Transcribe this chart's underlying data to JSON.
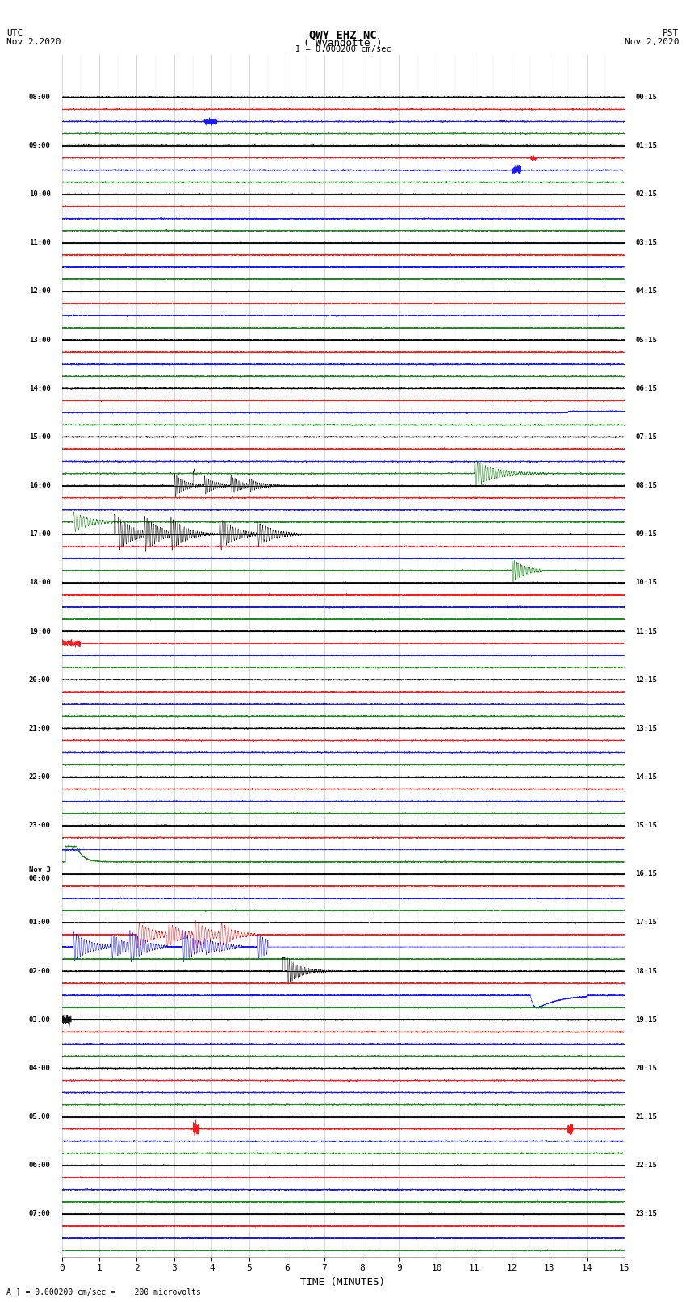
{
  "title_line1": "QWY EHZ NC",
  "title_line2": "( Wyandotte )",
  "title_line3": "I = 0.000200 cm/sec",
  "left_label_line1": "UTC",
  "left_label_line2": "Nov 2,2020",
  "right_label_line1": "PST",
  "right_label_line2": "Nov 2,2020",
  "xlabel": "TIME (MINUTES)",
  "bottom_label": "A ] = 0.000200 cm/sec =    200 microvolts",
  "utc_times": [
    "08:00",
    "09:00",
    "10:00",
    "11:00",
    "12:00",
    "13:00",
    "14:00",
    "15:00",
    "16:00",
    "17:00",
    "18:00",
    "19:00",
    "20:00",
    "21:00",
    "22:00",
    "23:00",
    "Nov 3\n00:00",
    "01:00",
    "02:00",
    "03:00",
    "04:00",
    "05:00",
    "06:00",
    "07:00"
  ],
  "pst_times": [
    "00:15",
    "01:15",
    "02:15",
    "03:15",
    "04:15",
    "05:15",
    "06:15",
    "07:15",
    "08:15",
    "09:15",
    "10:15",
    "11:15",
    "12:15",
    "13:15",
    "14:15",
    "15:15",
    "16:15",
    "17:15",
    "18:15",
    "19:15",
    "20:15",
    "21:15",
    "22:15",
    "23:15"
  ],
  "num_rows": 24,
  "sub_traces": 4,
  "xmin": 0,
  "xmax": 15,
  "background_color": "#ffffff",
  "grid_color": "#888888"
}
